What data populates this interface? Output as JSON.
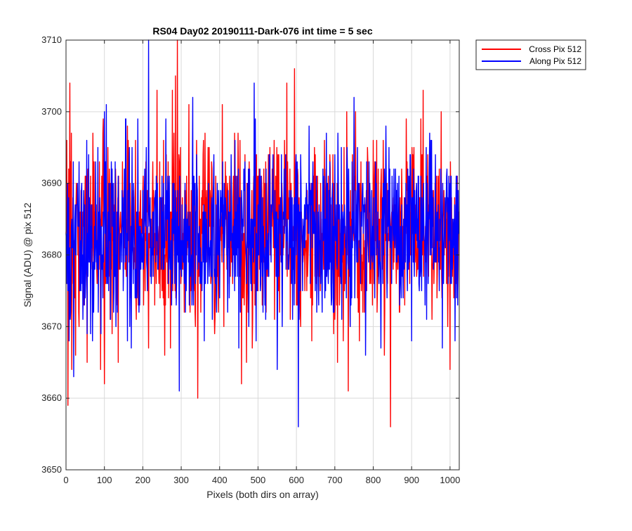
{
  "chart_data": {
    "type": "line",
    "title": "RS04 Day02 20190111-Dark-076 int time = 5 sec",
    "xlabel": "Pixels (both dirs on array)",
    "ylabel": "Signal (ADU) @ pix 512",
    "xlim": [
      0,
      1024
    ],
    "ylim": [
      3650,
      3710
    ],
    "xticks": [
      0,
      100,
      200,
      300,
      400,
      500,
      600,
      700,
      800,
      900,
      1000
    ],
    "yticks": [
      3650,
      3660,
      3670,
      3680,
      3690,
      3700,
      3710
    ],
    "grid": true,
    "legend_position": "outside-top-right",
    "n_points": 1024,
    "series": [
      {
        "name": "Cross Pix 512",
        "color": "#ff0000",
        "mean": 3683,
        "noise_std": 6.3,
        "samples": [
          [
            0,
            3683
          ],
          [
            10,
            3704
          ],
          [
            15,
            3664
          ],
          [
            25,
            3666
          ],
          [
            40,
            3686
          ],
          [
            55,
            3665
          ],
          [
            70,
            3697
          ],
          [
            90,
            3664
          ],
          [
            100,
            3662
          ],
          [
            160,
            3698
          ],
          [
            215,
            3667
          ],
          [
            237,
            3703
          ],
          [
            272,
            3667
          ],
          [
            285,
            3705
          ],
          [
            290,
            3710
          ],
          [
            320,
            3701
          ],
          [
            340,
            3696
          ],
          [
            470,
            3665
          ],
          [
            575,
            3704
          ],
          [
            595,
            3706
          ],
          [
            640,
            3668
          ],
          [
            735,
            3661
          ],
          [
            800,
            3696
          ],
          [
            845,
            3656
          ],
          [
            930,
            3703
          ],
          [
            1000,
            3664
          ],
          [
            1024,
            3683
          ]
        ]
      },
      {
        "name": "Along Pix 512",
        "color": "#0000ff",
        "mean": 3683,
        "noise_std": 5.9,
        "samples": [
          [
            0,
            3683
          ],
          [
            8,
            3668
          ],
          [
            100,
            3700
          ],
          [
            155,
            3699
          ],
          [
            170,
            3667
          ],
          [
            215,
            3710
          ],
          [
            260,
            3699
          ],
          [
            295,
            3661
          ],
          [
            330,
            3702
          ],
          [
            360,
            3668
          ],
          [
            450,
            3667
          ],
          [
            490,
            3704
          ],
          [
            495,
            3668
          ],
          [
            550,
            3664
          ],
          [
            605,
            3656
          ],
          [
            750,
            3702
          ],
          [
            780,
            3666
          ],
          [
            820,
            3667
          ],
          [
            900,
            3668
          ],
          [
            980,
            3667
          ],
          [
            1024,
            3683
          ]
        ]
      }
    ]
  }
}
